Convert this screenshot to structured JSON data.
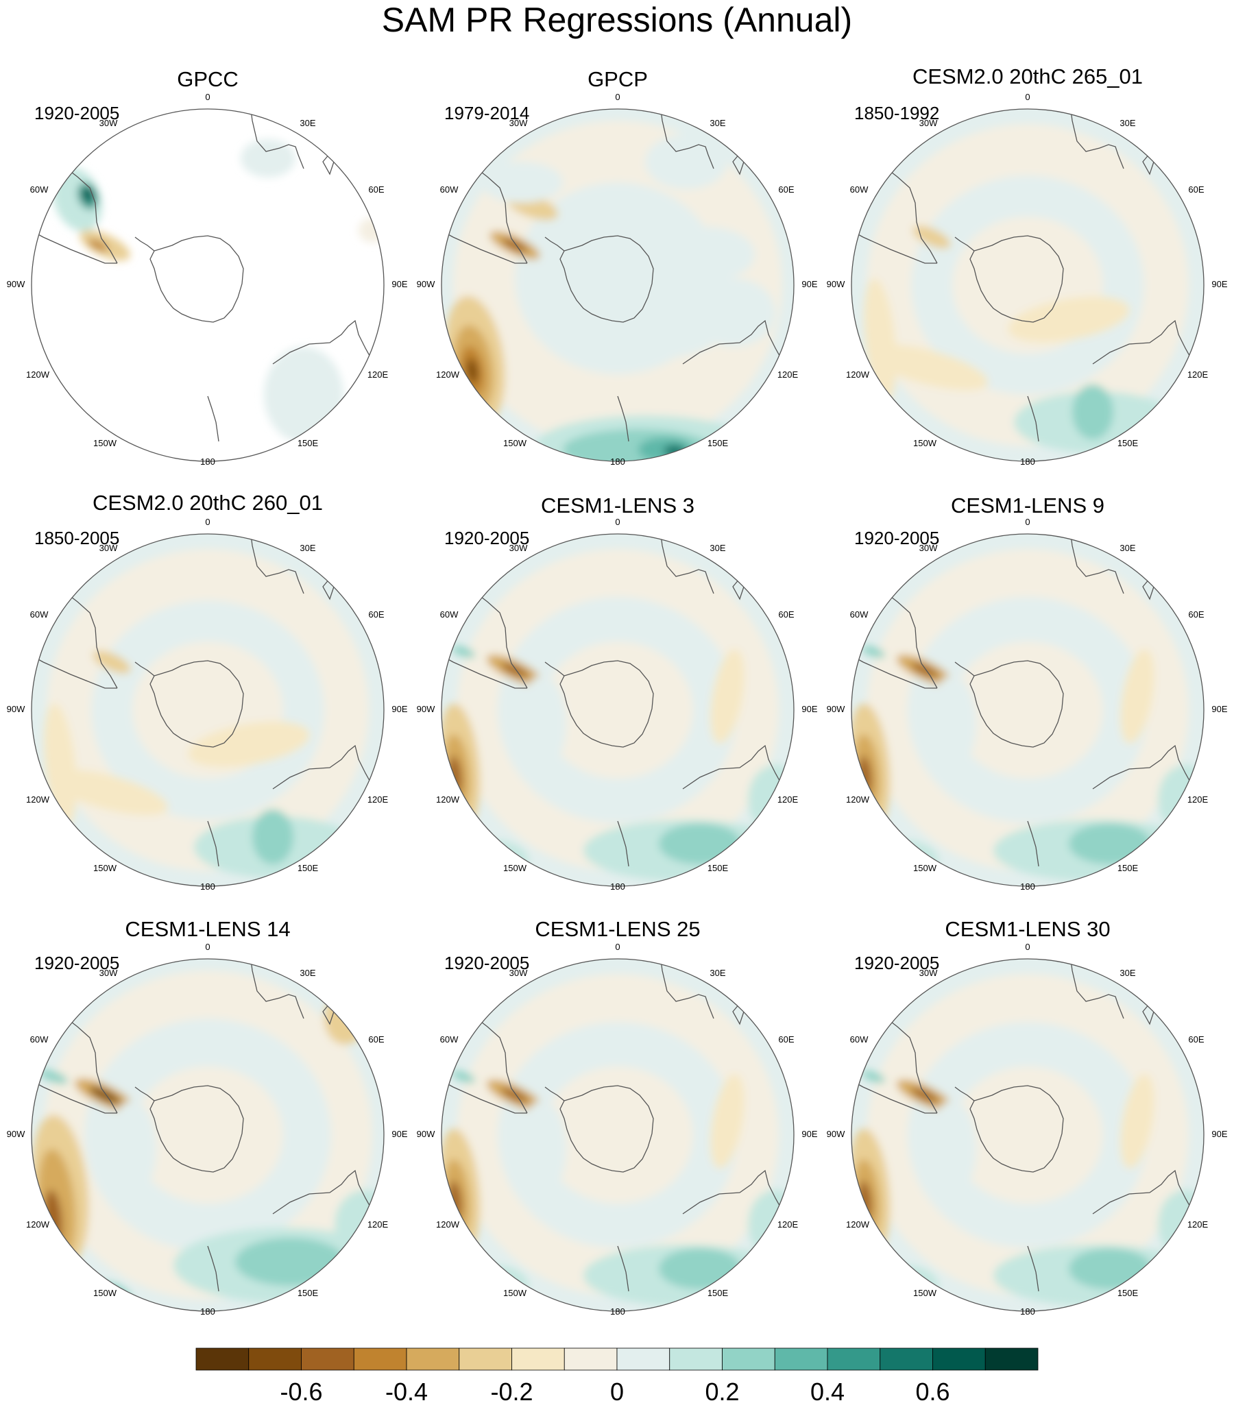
{
  "title": "SAM PR Regressions (Annual)",
  "panels": [
    {
      "title": "GPCC",
      "years": "1920-2005",
      "style": "gpcc"
    },
    {
      "title": "GPCP",
      "years": "1979-2014",
      "style": "gpcp"
    },
    {
      "title": "CESM2.0 20thC 265_01",
      "years": "1850-1992",
      "style": "weak"
    },
    {
      "title": "CESM2.0 20thC 260_01",
      "years": "1850-2005",
      "style": "weak"
    },
    {
      "title": "CESM1-LENS 3",
      "years": "1920-2005",
      "style": "lens"
    },
    {
      "title": "CESM1-LENS 9",
      "years": "1920-2005",
      "style": "lens"
    },
    {
      "title": "CESM1-LENS 14",
      "years": "1920-2005",
      "style": "strong"
    },
    {
      "title": "CESM1-LENS 25",
      "years": "1920-2005",
      "style": "lens"
    },
    {
      "title": "CESM1-LENS 30",
      "years": "1920-2005",
      "style": "lens"
    }
  ],
  "longitude_labels": [
    "0",
    "30E",
    "60E",
    "90E",
    "120E",
    "150E",
    "180",
    "150W",
    "120W",
    "90W",
    "60W",
    "30W"
  ],
  "colorbar": {
    "colors": [
      "#5b3508",
      "#7f4b0d",
      "#a06222",
      "#c0832f",
      "#d6aa5d",
      "#e9cf95",
      "#f6e8c5",
      "#f4efe2",
      "#e3efee",
      "#c4e7e0",
      "#92d3c6",
      "#5fb8a9",
      "#34998a",
      "#14776a",
      "#01594d",
      "#003b30"
    ],
    "tick_values": [
      -0.6,
      -0.4,
      -0.2,
      0,
      0.2,
      0.4,
      0.6
    ],
    "tick_labels": [
      "-0.6",
      "-0.4",
      "-0.2",
      "0",
      "0.2",
      "0.4",
      "0.6"
    ]
  }
}
